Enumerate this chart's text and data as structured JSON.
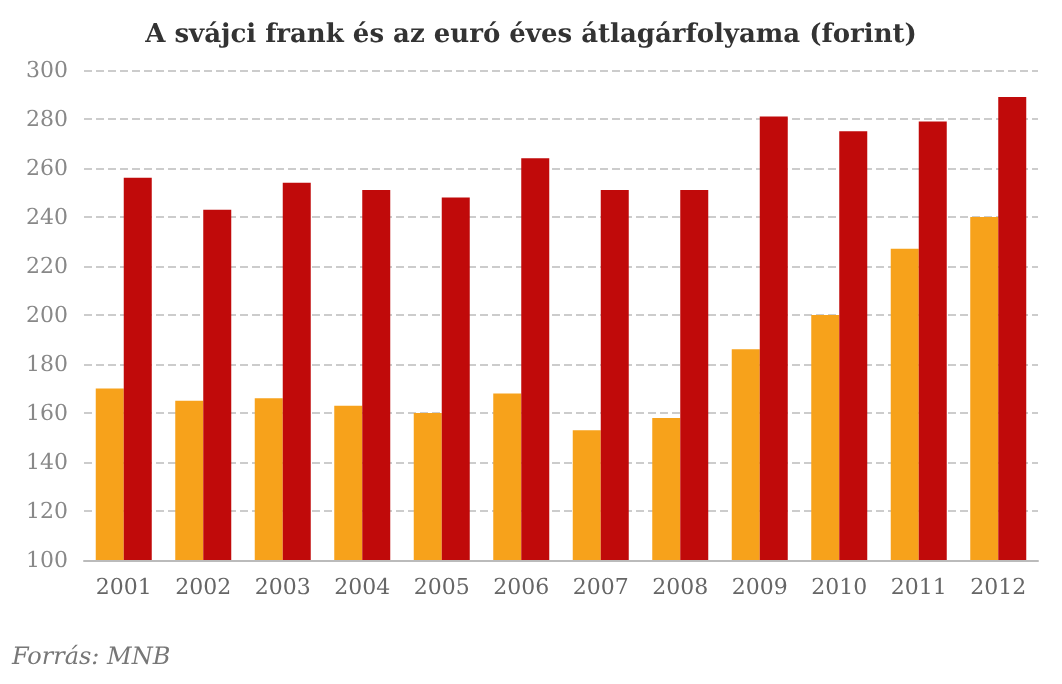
{
  "chart_data": {
    "type": "bar",
    "title": "A svájci frank és az euró éves átlagárfolyama (forint)",
    "categories": [
      "2001",
      "2002",
      "2003",
      "2004",
      "2005",
      "2006",
      "2007",
      "2008",
      "2009",
      "2010",
      "2011",
      "2012"
    ],
    "series": [
      {
        "color": "#f7a21b",
        "values": [
          170,
          165,
          166,
          163,
          160,
          168,
          153,
          158,
          186,
          200,
          227,
          240
        ]
      },
      {
        "color": "#c00a0a",
        "values": [
          256,
          243,
          254,
          251,
          248,
          264,
          251,
          251,
          281,
          275,
          279,
          289
        ]
      }
    ],
    "ylim": [
      100,
      300
    ],
    "yticks": [
      100,
      120,
      140,
      160,
      180,
      200,
      220,
      240,
      260,
      280,
      300
    ],
    "grid": "y",
    "annotations": [
      "Forrás: MNB"
    ]
  }
}
